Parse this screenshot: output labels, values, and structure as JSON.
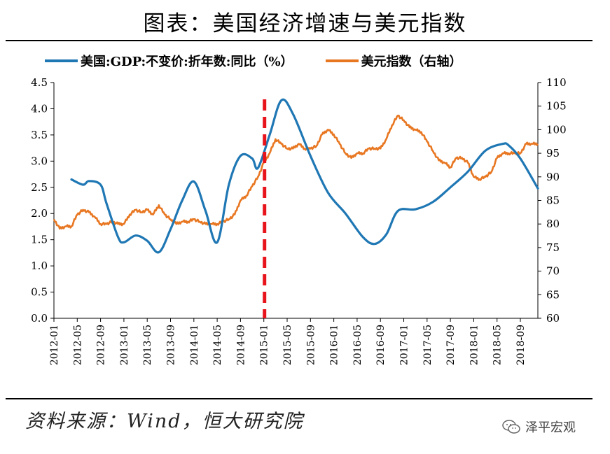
{
  "title": "图表：美国经济增速与美元指数",
  "source": "资料来源：Wind，恒大研究院",
  "watermark": {
    "text": "泽平宏观",
    "icon": "wechat-icon"
  },
  "chart_data": {
    "type": "line",
    "legend": [
      {
        "name": "美国:GDP:不变价:折年数:同比（%）",
        "color": "#1F77B4",
        "axis": "left"
      },
      {
        "name": "美元指数（右轴）",
        "color": "#E87722",
        "axis": "right"
      }
    ],
    "legend_position": "top",
    "x_ticks": [
      "2012-01",
      "2012-05",
      "2012-09",
      "2013-01",
      "2013-05",
      "2013-09",
      "2014-01",
      "2014-05",
      "2014-09",
      "2015-01",
      "2015-05",
      "2015-09",
      "2016-01",
      "2016-05",
      "2016-09",
      "2017-01",
      "2017-05",
      "2017-09",
      "2018-01",
      "2018-05",
      "2018-09"
    ],
    "x_range": [
      "2012-01",
      "2018-12"
    ],
    "y_left": {
      "range": [
        0,
        4.5
      ],
      "ticks": [
        "0.0",
        "0.5",
        "1.0",
        "1.5",
        "2.0",
        "2.5",
        "3.0",
        "3.5",
        "4.0",
        "4.5"
      ]
    },
    "y_right": {
      "range": [
        60,
        110
      ],
      "ticks": [
        "60",
        "65",
        "70",
        "75",
        "80",
        "85",
        "90",
        "95",
        "100",
        "105",
        "110"
      ]
    },
    "grid": false,
    "vertical_marker": {
      "x": "2015-01",
      "color": "#E8141B",
      "style": "dashed"
    },
    "series": [
      {
        "name": "美国:GDP:不变价:折年数:同比（%）",
        "axis": "left",
        "color": "#1F77B4",
        "x": [
          "2012-04",
          "2012-06",
          "2012-07",
          "2012-09",
          "2012-10",
          "2012-12",
          "2013-01",
          "2013-03",
          "2013-05",
          "2013-07",
          "2013-09",
          "2013-11",
          "2014-01",
          "2014-03",
          "2014-05",
          "2014-07",
          "2014-09",
          "2014-11",
          "2014-12",
          "2015-02",
          "2015-04",
          "2015-06",
          "2015-09",
          "2015-12",
          "2016-03",
          "2016-06",
          "2016-08",
          "2016-10",
          "2016-12",
          "2017-03",
          "2017-06",
          "2017-09",
          "2017-12",
          "2018-03",
          "2018-06",
          "2018-07",
          "2018-09",
          "2018-12"
        ],
        "values": [
          2.65,
          2.55,
          2.62,
          2.55,
          2.2,
          1.55,
          1.45,
          1.58,
          1.48,
          1.26,
          1.7,
          2.25,
          2.61,
          2.05,
          1.45,
          2.55,
          3.1,
          3.05,
          2.87,
          3.5,
          4.16,
          3.9,
          3.1,
          2.4,
          2.0,
          1.55,
          1.42,
          1.6,
          2.05,
          2.08,
          2.22,
          2.5,
          2.8,
          3.2,
          3.33,
          3.3,
          3.05,
          2.48
        ]
      },
      {
        "name": "美元指数（右轴）",
        "axis": "right",
        "color": "#E87722",
        "x": [
          "2012-01",
          "2012-02",
          "2012-03",
          "2012-04",
          "2012-05",
          "2012-06",
          "2012-07",
          "2012-08",
          "2012-09",
          "2012-10",
          "2012-11",
          "2012-12",
          "2013-01",
          "2013-02",
          "2013-03",
          "2013-04",
          "2013-05",
          "2013-06",
          "2013-07",
          "2013-08",
          "2013-09",
          "2013-10",
          "2013-11",
          "2013-12",
          "2014-01",
          "2014-02",
          "2014-03",
          "2014-04",
          "2014-05",
          "2014-06",
          "2014-07",
          "2014-08",
          "2014-09",
          "2014-10",
          "2014-11",
          "2014-12",
          "2015-01",
          "2015-02",
          "2015-03",
          "2015-04",
          "2015-05",
          "2015-06",
          "2015-07",
          "2015-08",
          "2015-09",
          "2015-10",
          "2015-11",
          "2015-12",
          "2016-01",
          "2016-02",
          "2016-03",
          "2016-04",
          "2016-05",
          "2016-06",
          "2016-07",
          "2016-08",
          "2016-09",
          "2016-10",
          "2016-11",
          "2016-12",
          "2017-01",
          "2017-02",
          "2017-03",
          "2017-04",
          "2017-05",
          "2017-06",
          "2017-07",
          "2017-08",
          "2017-09",
          "2017-10",
          "2017-11",
          "2017-12",
          "2018-01",
          "2018-02",
          "2018-03",
          "2018-04",
          "2018-05",
          "2018-06",
          "2018-07",
          "2018-08",
          "2018-09",
          "2018-10",
          "2018-11",
          "2018-12"
        ],
        "values": [
          81,
          79,
          79.5,
          79.5,
          82,
          83,
          82.5,
          81.5,
          80,
          80,
          80.5,
          80,
          80,
          82,
          83,
          82.5,
          83,
          82,
          84,
          82,
          81,
          80,
          80.5,
          80.5,
          81,
          80.5,
          80,
          80,
          80,
          80.5,
          81,
          82,
          85,
          86,
          88,
          90,
          93,
          95,
          98,
          97,
          96,
          96,
          97,
          96,
          96,
          96.5,
          99,
          100,
          99,
          97,
          95,
          94,
          95,
          95,
          96,
          96,
          96,
          98,
          101,
          103,
          102,
          100.5,
          100,
          99.5,
          97.5,
          95.5,
          93.5,
          93,
          92,
          94,
          94,
          93,
          90,
          89.5,
          90,
          91,
          94,
          95,
          95,
          95,
          95,
          97,
          97,
          97
        ]
      }
    ]
  }
}
